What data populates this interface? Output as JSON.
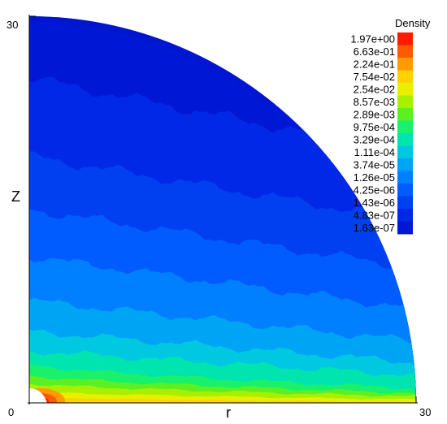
{
  "chart_data": {
    "type": "heatmap",
    "title": "",
    "xlabel": "r",
    "ylabel": "Z",
    "xlim": [
      0,
      30
    ],
    "ylim": [
      0,
      30
    ],
    "x_ticks": [
      "0",
      "30"
    ],
    "y_ticks": [
      "0",
      "30"
    ],
    "domain": "quarter-circle",
    "colorbar": {
      "title": "Density",
      "placement": "top-right",
      "levels": [
        "1.97e+00",
        "6.63e-01",
        "2.24e-01",
        "7.54e-02",
        "2.54e-02",
        "8.57e-03",
        "2.89e-03",
        "9.75e-04",
        "3.29e-04",
        "1.11e-04",
        "3.74e-05",
        "1.26e-05",
        "4.25e-06",
        "1.43e-06",
        "4.83e-07",
        "1.63e-07"
      ],
      "colors": [
        "#ff1a00",
        "#ff5a00",
        "#ff9a00",
        "#ffd200",
        "#e8f000",
        "#a8f000",
        "#5cf024",
        "#19f06c",
        "#00e4b0",
        "#00c8e0",
        "#00a4f4",
        "#0080ff",
        "#005cff",
        "#0040f0",
        "#0028e6",
        "#0018d6"
      ]
    }
  }
}
